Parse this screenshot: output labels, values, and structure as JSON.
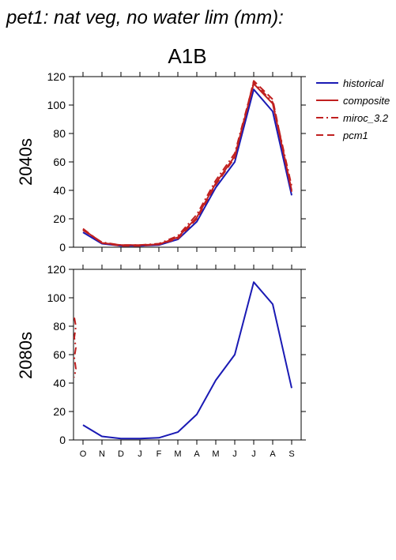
{
  "figure": {
    "title": "pet1: nat veg, no water lim (mm):",
    "scenario": "A1B"
  },
  "chart_data": [
    {
      "type": "line",
      "panel_label": "2040s",
      "categories": [
        "O",
        "N",
        "D",
        "J",
        "F",
        "M",
        "A",
        "M",
        "J",
        "J",
        "A",
        "S"
      ],
      "ylim": [
        0,
        120
      ],
      "yticks": [
        0,
        20,
        40,
        60,
        80,
        100,
        120
      ],
      "series": [
        {
          "name": "historical",
          "color": "#1a1ab4",
          "dash": "solid",
          "values": [
            10.5,
            2.5,
            1,
            1,
            1.5,
            5.5,
            18,
            42,
            60,
            111,
            95.5,
            36.5
          ]
        },
        {
          "name": "composite",
          "color": "#c02020",
          "dash": "solid",
          "values": [
            12.5,
            3,
            1.5,
            1.5,
            2,
            7,
            21,
            45,
            64,
            115,
            101,
            40
          ]
        },
        {
          "name": "miroc_3.2",
          "color": "#c02020",
          "dash": "dashdot",
          "values": [
            12,
            3.5,
            1.5,
            1.5,
            2.5,
            8,
            23,
            47,
            66,
            116,
            102,
            43
          ]
        },
        {
          "name": "pcm1",
          "color": "#c02020",
          "dash": "dash",
          "values": [
            13,
            3,
            1,
            1,
            2,
            6,
            20,
            44,
            63,
            117,
            104,
            39
          ]
        }
      ]
    },
    {
      "type": "line",
      "panel_label": "2080s",
      "categories": [
        "O",
        "N",
        "D",
        "J",
        "F",
        "M",
        "A",
        "M",
        "J",
        "J",
        "A",
        "S"
      ],
      "ylim": [
        0,
        120
      ],
      "yticks": [
        0,
        20,
        40,
        60,
        80,
        100,
        120
      ],
      "series": [
        {
          "name": "historical",
          "color": "#1a1ab4",
          "dash": "solid",
          "values": [
            10.5,
            2.5,
            1,
            1,
            1.5,
            5.5,
            18,
            42,
            60,
            111,
            95.5,
            36.5
          ]
        }
      ],
      "edge_artifact": {
        "color": "#c02020",
        "values": [
          86,
          80,
          72,
          65,
          58,
          50,
          44
        ]
      }
    }
  ],
  "legend": {
    "placement": "right",
    "items": [
      {
        "label": "historical",
        "color": "#1a1ab4",
        "dash": "solid"
      },
      {
        "label": "composite",
        "color": "#c02020",
        "dash": "solid"
      },
      {
        "label": "miroc_3.2",
        "color": "#c02020",
        "dash": "dashdot"
      },
      {
        "label": "pcm1",
        "color": "#c02020",
        "dash": "dash"
      }
    ]
  }
}
